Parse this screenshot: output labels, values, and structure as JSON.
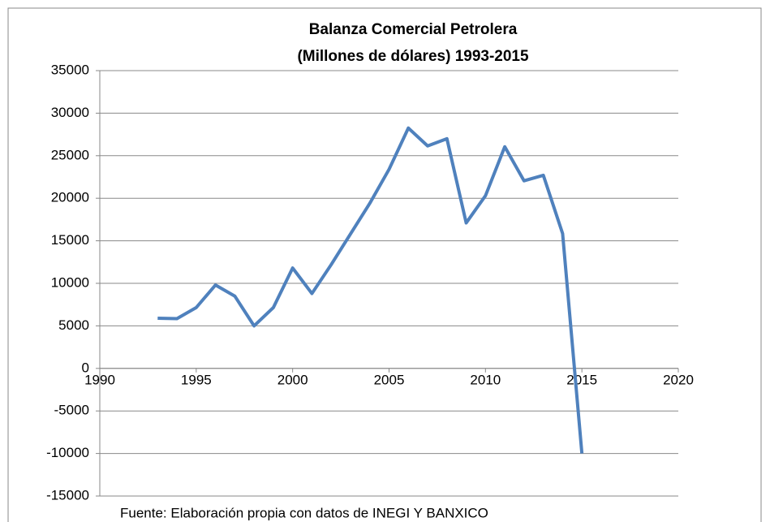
{
  "chart_data": {
    "type": "line",
    "title": [
      "Balanza Comercial Petrolera",
      "(Millones de dólares) 1993-2015"
    ],
    "series": [
      {
        "name": "Balanza Comercial Petrolera",
        "color": "#4f81bd",
        "x": [
          1993,
          1994,
          1995,
          1996,
          1997,
          1998,
          1999,
          2000,
          2001,
          2002,
          2003,
          2004,
          2005,
          2006,
          2007,
          2008,
          2009,
          2010,
          2011,
          2012,
          2013,
          2014,
          2015
        ],
        "values": [
          5900,
          5850,
          7150,
          9800,
          8500,
          5000,
          7150,
          11800,
          8800,
          12200,
          15800,
          19400,
          23400,
          28250,
          26150,
          27000,
          17100,
          20300,
          26050,
          22050,
          22700,
          15850,
          -10000
        ]
      }
    ],
    "xlim": [
      1990,
      2020
    ],
    "xticks": [
      1990,
      1995,
      2000,
      2005,
      2010,
      2015,
      2020
    ],
    "ylim": [
      -15000,
      35000
    ],
    "yticks": [
      -15000,
      -10000,
      -5000,
      0,
      5000,
      10000,
      15000,
      20000,
      25000,
      30000,
      35000
    ],
    "grid": true,
    "caption": "Fuente: Elaboración propia con datos de INEGI Y BANXICO"
  }
}
